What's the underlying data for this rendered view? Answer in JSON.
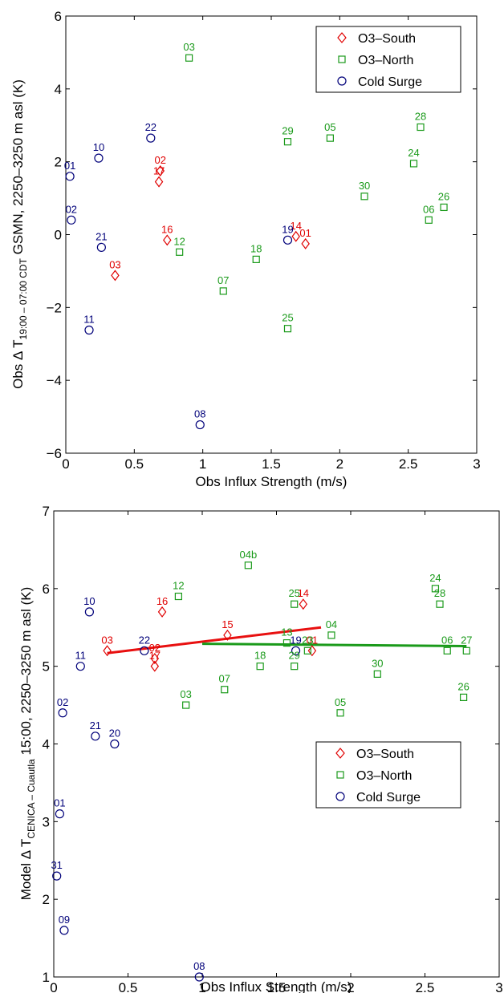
{
  "colors": {
    "south": "#e00000",
    "north": "#1a9a1a",
    "cold": "#00007a",
    "south_fit": "#e81010",
    "north_fit": "#1a9a1a"
  },
  "chart_data": [
    {
      "type": "scatter",
      "title": "",
      "xlabel": "Obs Influx Strength (m/s)",
      "ylabel": {
        "prefix": "Obs Δ T",
        "sub": "19:00 – 07:00 CDT",
        "suffix": " GSMN, 2250–3250 m asl (K)"
      },
      "xlim": [
        0,
        3
      ],
      "ylim": [
        -6,
        6
      ],
      "xticks": [
        0,
        0.5,
        1,
        1.5,
        2,
        2.5,
        3
      ],
      "xtick_labels": [
        "0",
        "0.5",
        "1",
        "1.5",
        "2",
        "2.5",
        "3"
      ],
      "yticks": [
        -6,
        -4,
        -2,
        0,
        2,
        4,
        6
      ],
      "ytick_labels": [
        "−6",
        "−4",
        "−2",
        "0",
        "2",
        "4",
        "6"
      ],
      "grid": false,
      "legend_position": "top-right",
      "series": [
        {
          "name": "O3–South",
          "marker": "diamond",
          "color_key": "south",
          "points": [
            {
              "x": 0.69,
              "y": 1.75,
              "label": "02"
            },
            {
              "x": 0.68,
              "y": 1.45,
              "label": "17"
            },
            {
              "x": 0.74,
              "y": -0.15,
              "label": "16"
            },
            {
              "x": 0.36,
              "y": -1.12,
              "label": "03"
            },
            {
              "x": 1.68,
              "y": -0.05,
              "label": "14"
            },
            {
              "x": 1.75,
              "y": -0.25,
              "label": "01"
            }
          ]
        },
        {
          "name": "O3–North",
          "marker": "square",
          "color_key": "north",
          "points": [
            {
              "x": 0.9,
              "y": 4.85,
              "label": "03"
            },
            {
              "x": 1.62,
              "y": 2.55,
              "label": "29"
            },
            {
              "x": 1.93,
              "y": 2.65,
              "label": "05"
            },
            {
              "x": 2.59,
              "y": 2.95,
              "label": "28"
            },
            {
              "x": 2.54,
              "y": 1.95,
              "label": "24"
            },
            {
              "x": 2.18,
              "y": 1.05,
              "label": "30"
            },
            {
              "x": 2.76,
              "y": 0.75,
              "label": "26"
            },
            {
              "x": 2.65,
              "y": 0.4,
              "label": "06"
            },
            {
              "x": 0.83,
              "y": -0.48,
              "label": "12"
            },
            {
              "x": 1.39,
              "y": -0.68,
              "label": "18"
            },
            {
              "x": 1.15,
              "y": -1.55,
              "label": "07"
            },
            {
              "x": 1.62,
              "y": -2.58,
              "label": "25"
            }
          ]
        },
        {
          "name": "Cold Surge",
          "marker": "circle",
          "color_key": "cold",
          "points": [
            {
              "x": 0.03,
              "y": 1.6,
              "label": "01"
            },
            {
              "x": 0.24,
              "y": 2.1,
              "label": "10"
            },
            {
              "x": 0.62,
              "y": 2.65,
              "label": "22"
            },
            {
              "x": 0.04,
              "y": 0.4,
              "label": "02"
            },
            {
              "x": 0.26,
              "y": -0.35,
              "label": "21"
            },
            {
              "x": 1.62,
              "y": -0.15,
              "label": "19"
            },
            {
              "x": 0.17,
              "y": -2.62,
              "label": "11"
            },
            {
              "x": 0.98,
              "y": -5.22,
              "label": "08"
            }
          ]
        }
      ]
    },
    {
      "type": "scatter",
      "title": "",
      "xlabel": "Obs Influx Strength (m/s)",
      "ylabel": {
        "prefix": "Model Δ T",
        "sub": "CENICA – Cuautla",
        "suffix": " 15:00, 2250–3250 m asl (K)"
      },
      "xlim": [
        0,
        3
      ],
      "ylim": [
        1,
        7
      ],
      "xticks": [
        0,
        0.5,
        1,
        1.5,
        2,
        2.5,
        3
      ],
      "xtick_labels": [
        "0",
        "0.5",
        "1",
        "1.5",
        "2",
        "2.5",
        "3"
      ],
      "yticks": [
        1,
        2,
        3,
        4,
        5,
        6,
        7
      ],
      "ytick_labels": [
        "1",
        "2",
        "3",
        "4",
        "5",
        "6",
        "7"
      ],
      "grid": false,
      "legend_position": "bottom-right",
      "fit_lines": [
        {
          "series": "O3–South",
          "color_key": "south_fit",
          "x": [
            0.36,
            1.8
          ],
          "y": [
            5.17,
            5.5
          ]
        },
        {
          "series": "O3–North",
          "color_key": "north_fit",
          "x": [
            1.0,
            2.78
          ],
          "y": [
            5.29,
            5.26
          ]
        }
      ],
      "series": [
        {
          "name": "O3–South",
          "marker": "diamond",
          "color_key": "south",
          "points": [
            {
              "x": 0.36,
              "y": 5.2,
              "label": "03"
            },
            {
              "x": 0.73,
              "y": 5.7,
              "label": "16"
            },
            {
              "x": 1.17,
              "y": 5.4,
              "label": "15"
            },
            {
              "x": 1.68,
              "y": 5.8,
              "label": "14"
            },
            {
              "x": 0.68,
              "y": 5.1,
              "label": "02"
            },
            {
              "x": 0.68,
              "y": 5.0,
              "label": "17"
            },
            {
              "x": 1.74,
              "y": 5.2,
              "label": "01"
            }
          ]
        },
        {
          "name": "O3–North",
          "marker": "square",
          "color_key": "north",
          "points": [
            {
              "x": 0.84,
              "y": 5.9,
              "label": "12"
            },
            {
              "x": 1.31,
              "y": 6.3,
              "label": "04b"
            },
            {
              "x": 1.62,
              "y": 5.8,
              "label": "25"
            },
            {
              "x": 2.57,
              "y": 6.0,
              "label": "24"
            },
            {
              "x": 2.6,
              "y": 5.8,
              "label": "28"
            },
            {
              "x": 1.57,
              "y": 5.3,
              "label": "13"
            },
            {
              "x": 1.87,
              "y": 5.4,
              "label": "04"
            },
            {
              "x": 1.39,
              "y": 5.0,
              "label": "18"
            },
            {
              "x": 1.62,
              "y": 5.0,
              "label": "29"
            },
            {
              "x": 1.71,
              "y": 5.2,
              "label": "23"
            },
            {
              "x": 0.89,
              "y": 4.5,
              "label": "03"
            },
            {
              "x": 1.15,
              "y": 4.7,
              "label": "07"
            },
            {
              "x": 2.18,
              "y": 4.9,
              "label": "30"
            },
            {
              "x": 2.65,
              "y": 5.2,
              "label": "06"
            },
            {
              "x": 2.78,
              "y": 5.2,
              "label": "27"
            },
            {
              "x": 1.93,
              "y": 4.4,
              "label": "05"
            },
            {
              "x": 2.76,
              "y": 4.6,
              "label": "26"
            }
          ]
        },
        {
          "name": "Cold Surge",
          "marker": "circle",
          "color_key": "cold",
          "points": [
            {
              "x": 0.24,
              "y": 5.7,
              "label": "10"
            },
            {
              "x": 0.61,
              "y": 5.2,
              "label": "22"
            },
            {
              "x": 0.18,
              "y": 5.0,
              "label": "11"
            },
            {
              "x": 1.63,
              "y": 5.2,
              "label": "19"
            },
            {
              "x": 0.06,
              "y": 4.4,
              "label": "02"
            },
            {
              "x": 0.28,
              "y": 4.1,
              "label": "21"
            },
            {
              "x": 0.41,
              "y": 4.0,
              "label": "20"
            },
            {
              "x": 0.04,
              "y": 3.1,
              "label": "01"
            },
            {
              "x": 0.02,
              "y": 2.3,
              "label": "31"
            },
            {
              "x": 0.07,
              "y": 1.6,
              "label": "09"
            },
            {
              "x": 0.98,
              "y": 1.0,
              "label": "08"
            }
          ]
        }
      ]
    }
  ]
}
